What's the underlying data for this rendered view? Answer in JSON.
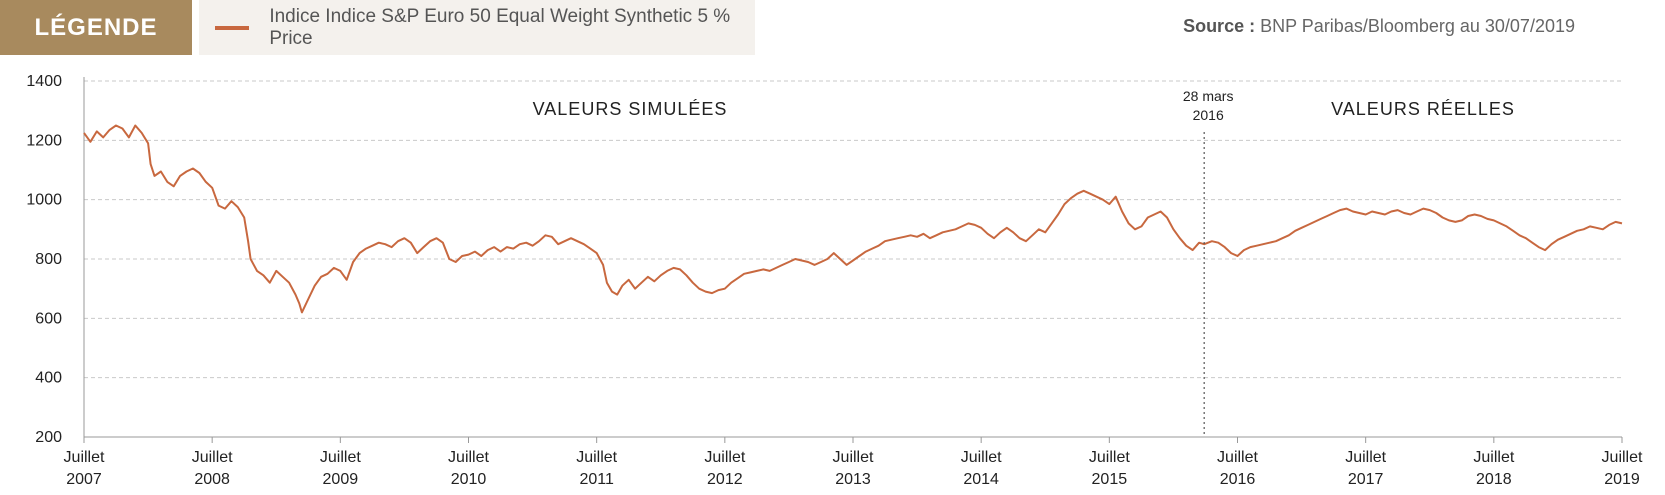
{
  "legend": {
    "tag": "LÉGENDE",
    "series_label": "Indice Indice S&P Euro 50 Equal Weight Synthetic 5 % Price",
    "series_color": "#c8683f"
  },
  "source": {
    "label": "Source :",
    "text": "BNP Paribas/Bloomberg au 30/07/2019"
  },
  "chart_data": {
    "type": "line",
    "title": "",
    "xlabel": "",
    "ylabel": "",
    "ylim": [
      200,
      1400
    ],
    "yticks": [
      200,
      400,
      600,
      800,
      1000,
      1200,
      1400
    ],
    "xlim": [
      2007.5,
      2019.5
    ],
    "xticks": [
      {
        "x": 2007.5,
        "line1": "Juillet",
        "line2": "2007"
      },
      {
        "x": 2008.5,
        "line1": "Juillet",
        "line2": "2008"
      },
      {
        "x": 2009.5,
        "line1": "Juillet",
        "line2": "2009"
      },
      {
        "x": 2010.5,
        "line1": "Juillet",
        "line2": "2010"
      },
      {
        "x": 2011.5,
        "line1": "Juillet",
        "line2": "2011"
      },
      {
        "x": 2012.5,
        "line1": "Juillet",
        "line2": "2012"
      },
      {
        "x": 2013.5,
        "line1": "Juillet",
        "line2": "2013"
      },
      {
        "x": 2014.5,
        "line1": "Juillet",
        "line2": "2014"
      },
      {
        "x": 2015.5,
        "line1": "Juillet",
        "line2": "2015"
      },
      {
        "x": 2016.5,
        "line1": "Juillet",
        "line2": "2016"
      },
      {
        "x": 2017.5,
        "line1": "Juillet",
        "line2": "2017"
      },
      {
        "x": 2018.5,
        "line1": "Juillet",
        "line2": "2018"
      },
      {
        "x": 2019.5,
        "line1": "Juillet",
        "line2": "2019"
      }
    ],
    "grid": true,
    "line_color": "#c8683f",
    "annotations": {
      "simulated": "VALEURS SIMULÉES",
      "real": "VALEURS RÉELLES",
      "marker_x": 2016.24,
      "marker_line1": "28 mars",
      "marker_line2": "2016"
    },
    "series": [
      {
        "name": "Indice Indice S&P Euro 50 Equal Weight Synthetic 5 % Price",
        "points": [
          [
            2007.5,
            1225
          ],
          [
            2007.55,
            1195
          ],
          [
            2007.6,
            1230
          ],
          [
            2007.65,
            1210
          ],
          [
            2007.7,
            1235
          ],
          [
            2007.75,
            1250
          ],
          [
            2007.8,
            1240
          ],
          [
            2007.85,
            1210
          ],
          [
            2007.9,
            1250
          ],
          [
            2007.95,
            1225
          ],
          [
            2008.0,
            1190
          ],
          [
            2008.02,
            1120
          ],
          [
            2008.05,
            1080
          ],
          [
            2008.1,
            1095
          ],
          [
            2008.15,
            1060
          ],
          [
            2008.2,
            1045
          ],
          [
            2008.25,
            1080
          ],
          [
            2008.3,
            1095
          ],
          [
            2008.35,
            1105
          ],
          [
            2008.4,
            1090
          ],
          [
            2008.45,
            1060
          ],
          [
            2008.5,
            1040
          ],
          [
            2008.55,
            980
          ],
          [
            2008.6,
            970
          ],
          [
            2008.65,
            995
          ],
          [
            2008.7,
            975
          ],
          [
            2008.75,
            940
          ],
          [
            2008.78,
            860
          ],
          [
            2008.8,
            800
          ],
          [
            2008.85,
            760
          ],
          [
            2008.9,
            745
          ],
          [
            2008.95,
            720
          ],
          [
            2009.0,
            760
          ],
          [
            2009.05,
            740
          ],
          [
            2009.1,
            720
          ],
          [
            2009.15,
            680
          ],
          [
            2009.18,
            650
          ],
          [
            2009.2,
            620
          ],
          [
            2009.25,
            665
          ],
          [
            2009.3,
            710
          ],
          [
            2009.35,
            740
          ],
          [
            2009.4,
            750
          ],
          [
            2009.45,
            770
          ],
          [
            2009.5,
            760
          ],
          [
            2009.55,
            730
          ],
          [
            2009.6,
            790
          ],
          [
            2009.65,
            820
          ],
          [
            2009.7,
            835
          ],
          [
            2009.75,
            845
          ],
          [
            2009.8,
            855
          ],
          [
            2009.85,
            850
          ],
          [
            2009.9,
            840
          ],
          [
            2009.95,
            860
          ],
          [
            2010.0,
            870
          ],
          [
            2010.05,
            855
          ],
          [
            2010.1,
            820
          ],
          [
            2010.15,
            840
          ],
          [
            2010.2,
            860
          ],
          [
            2010.25,
            870
          ],
          [
            2010.3,
            855
          ],
          [
            2010.35,
            800
          ],
          [
            2010.4,
            790
          ],
          [
            2010.45,
            810
          ],
          [
            2010.5,
            815
          ],
          [
            2010.55,
            825
          ],
          [
            2010.6,
            810
          ],
          [
            2010.65,
            830
          ],
          [
            2010.7,
            840
          ],
          [
            2010.75,
            825
          ],
          [
            2010.8,
            840
          ],
          [
            2010.85,
            835
          ],
          [
            2010.9,
            850
          ],
          [
            2010.95,
            855
          ],
          [
            2011.0,
            845
          ],
          [
            2011.05,
            860
          ],
          [
            2011.1,
            880
          ],
          [
            2011.15,
            875
          ],
          [
            2011.2,
            850
          ],
          [
            2011.25,
            860
          ],
          [
            2011.3,
            870
          ],
          [
            2011.35,
            860
          ],
          [
            2011.4,
            850
          ],
          [
            2011.45,
            835
          ],
          [
            2011.5,
            820
          ],
          [
            2011.55,
            780
          ],
          [
            2011.58,
            720
          ],
          [
            2011.62,
            690
          ],
          [
            2011.66,
            680
          ],
          [
            2011.7,
            710
          ],
          [
            2011.75,
            730
          ],
          [
            2011.8,
            700
          ],
          [
            2011.85,
            720
          ],
          [
            2011.9,
            740
          ],
          [
            2011.95,
            725
          ],
          [
            2012.0,
            745
          ],
          [
            2012.05,
            760
          ],
          [
            2012.1,
            770
          ],
          [
            2012.15,
            765
          ],
          [
            2012.2,
            745
          ],
          [
            2012.25,
            720
          ],
          [
            2012.3,
            700
          ],
          [
            2012.35,
            690
          ],
          [
            2012.4,
            685
          ],
          [
            2012.45,
            695
          ],
          [
            2012.5,
            700
          ],
          [
            2012.55,
            720
          ],
          [
            2012.6,
            735
          ],
          [
            2012.65,
            750
          ],
          [
            2012.7,
            755
          ],
          [
            2012.75,
            760
          ],
          [
            2012.8,
            765
          ],
          [
            2012.85,
            760
          ],
          [
            2012.9,
            770
          ],
          [
            2012.95,
            780
          ],
          [
            2013.0,
            790
          ],
          [
            2013.05,
            800
          ],
          [
            2013.1,
            795
          ],
          [
            2013.15,
            790
          ],
          [
            2013.2,
            780
          ],
          [
            2013.25,
            790
          ],
          [
            2013.3,
            800
          ],
          [
            2013.35,
            820
          ],
          [
            2013.4,
            800
          ],
          [
            2013.45,
            780
          ],
          [
            2013.5,
            795
          ],
          [
            2013.55,
            810
          ],
          [
            2013.6,
            825
          ],
          [
            2013.65,
            835
          ],
          [
            2013.7,
            845
          ],
          [
            2013.75,
            860
          ],
          [
            2013.8,
            865
          ],
          [
            2013.85,
            870
          ],
          [
            2013.9,
            875
          ],
          [
            2013.95,
            880
          ],
          [
            2014.0,
            875
          ],
          [
            2014.05,
            885
          ],
          [
            2014.1,
            870
          ],
          [
            2014.15,
            880
          ],
          [
            2014.2,
            890
          ],
          [
            2014.25,
            895
          ],
          [
            2014.3,
            900
          ],
          [
            2014.35,
            910
          ],
          [
            2014.4,
            920
          ],
          [
            2014.45,
            915
          ],
          [
            2014.5,
            905
          ],
          [
            2014.55,
            885
          ],
          [
            2014.6,
            870
          ],
          [
            2014.65,
            890
          ],
          [
            2014.7,
            905
          ],
          [
            2014.75,
            890
          ],
          [
            2014.8,
            870
          ],
          [
            2014.85,
            860
          ],
          [
            2014.9,
            880
          ],
          [
            2014.95,
            900
          ],
          [
            2015.0,
            890
          ],
          [
            2015.05,
            920
          ],
          [
            2015.1,
            950
          ],
          [
            2015.15,
            985
          ],
          [
            2015.2,
            1005
          ],
          [
            2015.25,
            1020
          ],
          [
            2015.3,
            1030
          ],
          [
            2015.35,
            1020
          ],
          [
            2015.4,
            1010
          ],
          [
            2015.45,
            1000
          ],
          [
            2015.5,
            985
          ],
          [
            2015.55,
            1010
          ],
          [
            2015.6,
            960
          ],
          [
            2015.65,
            920
          ],
          [
            2015.7,
            900
          ],
          [
            2015.75,
            910
          ],
          [
            2015.8,
            940
          ],
          [
            2015.85,
            950
          ],
          [
            2015.9,
            960
          ],
          [
            2015.95,
            940
          ],
          [
            2016.0,
            900
          ],
          [
            2016.05,
            870
          ],
          [
            2016.1,
            845
          ],
          [
            2016.15,
            830
          ],
          [
            2016.2,
            855
          ],
          [
            2016.24,
            850
          ],
          [
            2016.3,
            860
          ],
          [
            2016.35,
            855
          ],
          [
            2016.4,
            840
          ],
          [
            2016.45,
            820
          ],
          [
            2016.5,
            810
          ],
          [
            2016.55,
            830
          ],
          [
            2016.6,
            840
          ],
          [
            2016.65,
            845
          ],
          [
            2016.7,
            850
          ],
          [
            2016.75,
            855
          ],
          [
            2016.8,
            860
          ],
          [
            2016.85,
            870
          ],
          [
            2016.9,
            880
          ],
          [
            2016.95,
            895
          ],
          [
            2017.0,
            905
          ],
          [
            2017.05,
            915
          ],
          [
            2017.1,
            925
          ],
          [
            2017.15,
            935
          ],
          [
            2017.2,
            945
          ],
          [
            2017.25,
            955
          ],
          [
            2017.3,
            965
          ],
          [
            2017.35,
            970
          ],
          [
            2017.4,
            960
          ],
          [
            2017.45,
            955
          ],
          [
            2017.5,
            950
          ],
          [
            2017.55,
            960
          ],
          [
            2017.6,
            955
          ],
          [
            2017.65,
            950
          ],
          [
            2017.7,
            960
          ],
          [
            2017.75,
            965
          ],
          [
            2017.8,
            955
          ],
          [
            2017.85,
            950
          ],
          [
            2017.9,
            960
          ],
          [
            2017.95,
            970
          ],
          [
            2018.0,
            965
          ],
          [
            2018.05,
            955
          ],
          [
            2018.1,
            940
          ],
          [
            2018.15,
            930
          ],
          [
            2018.2,
            925
          ],
          [
            2018.25,
            930
          ],
          [
            2018.3,
            945
          ],
          [
            2018.35,
            950
          ],
          [
            2018.4,
            945
          ],
          [
            2018.45,
            935
          ],
          [
            2018.5,
            930
          ],
          [
            2018.55,
            920
          ],
          [
            2018.6,
            910
          ],
          [
            2018.65,
            895
          ],
          [
            2018.7,
            880
          ],
          [
            2018.75,
            870
          ],
          [
            2018.8,
            855
          ],
          [
            2018.85,
            840
          ],
          [
            2018.9,
            830
          ],
          [
            2018.95,
            850
          ],
          [
            2019.0,
            865
          ],
          [
            2019.05,
            875
          ],
          [
            2019.1,
            885
          ],
          [
            2019.15,
            895
          ],
          [
            2019.2,
            900
          ],
          [
            2019.25,
            910
          ],
          [
            2019.3,
            905
          ],
          [
            2019.35,
            900
          ],
          [
            2019.4,
            915
          ],
          [
            2019.45,
            925
          ],
          [
            2019.5,
            920
          ]
        ]
      }
    ]
  }
}
